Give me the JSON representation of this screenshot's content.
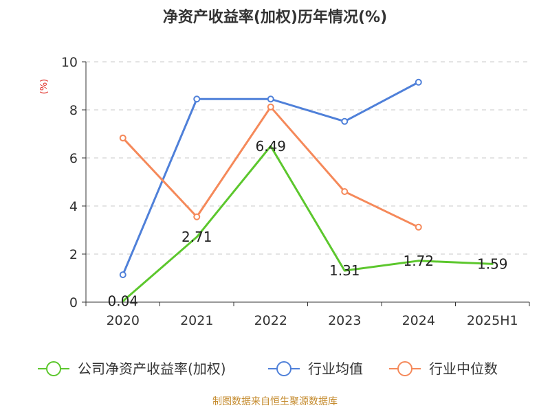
{
  "chart_data": {
    "type": "line",
    "title": "净资产收益率(加权)历年情况(%)",
    "unit_label": "(%)",
    "categories": [
      "2020",
      "2021",
      "2022",
      "2023",
      "2024",
      "2025H1"
    ],
    "ylim": [
      0,
      10
    ],
    "yticks": [
      "0",
      "2",
      "4",
      "6",
      "8",
      "10"
    ],
    "grid": true,
    "legend_position": "bottom",
    "series": [
      {
        "name": "公司净资产收益率(加权)",
        "color": "#5cc72d",
        "values": [
          0.04,
          2.71,
          6.49,
          1.31,
          1.72,
          1.59
        ],
        "labels": [
          "0.04",
          "2.71",
          "6.49",
          "1.31",
          "1.72",
          "1.59"
        ],
        "show_markers": false
      },
      {
        "name": "行业均值",
        "color": "#4f80d9",
        "values": [
          1.14,
          8.45,
          8.45,
          7.52,
          9.15,
          null
        ],
        "show_markers": true
      },
      {
        "name": "行业中位数",
        "color": "#f5895a",
        "values": [
          6.83,
          3.55,
          8.12,
          4.6,
          3.12,
          null
        ],
        "show_markers": true
      }
    ]
  },
  "footer": {
    "source": "制图数据来自恒生聚源数据库"
  }
}
